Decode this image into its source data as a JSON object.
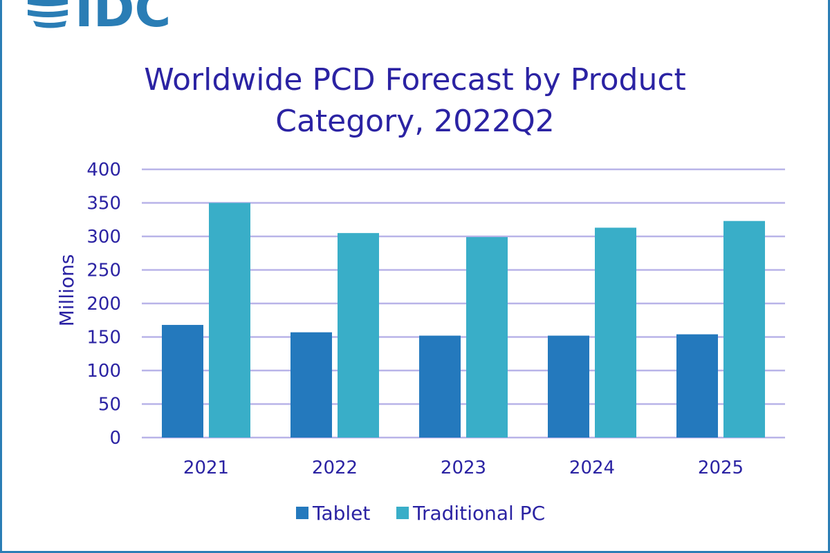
{
  "logo": {
    "text": "IDC",
    "color": "#2a7db5"
  },
  "colors": {
    "title": "#2b23a3",
    "tablet": "#2479bd",
    "traditional_pc": "#39aec8",
    "grid": "#b8b3e8",
    "frame": "#2a7db5"
  },
  "chart_data": {
    "type": "bar",
    "title_lines": [
      "Worldwide PCD Forecast by Product",
      "Category, 2022Q2"
    ],
    "ylabel": "Millions",
    "xlabel": "",
    "ylim": [
      0,
      400
    ],
    "yticks": [
      0,
      50,
      100,
      150,
      200,
      250,
      300,
      350,
      400
    ],
    "categories": [
      "2021",
      "2022",
      "2023",
      "2024",
      "2025"
    ],
    "series": [
      {
        "name": "Tablet",
        "values": [
          168,
          157,
          152,
          152,
          154
        ]
      },
      {
        "name": "Traditional PC",
        "values": [
          350,
          305,
          299,
          313,
          323
        ]
      }
    ],
    "grid": true,
    "legend_position": "bottom"
  }
}
